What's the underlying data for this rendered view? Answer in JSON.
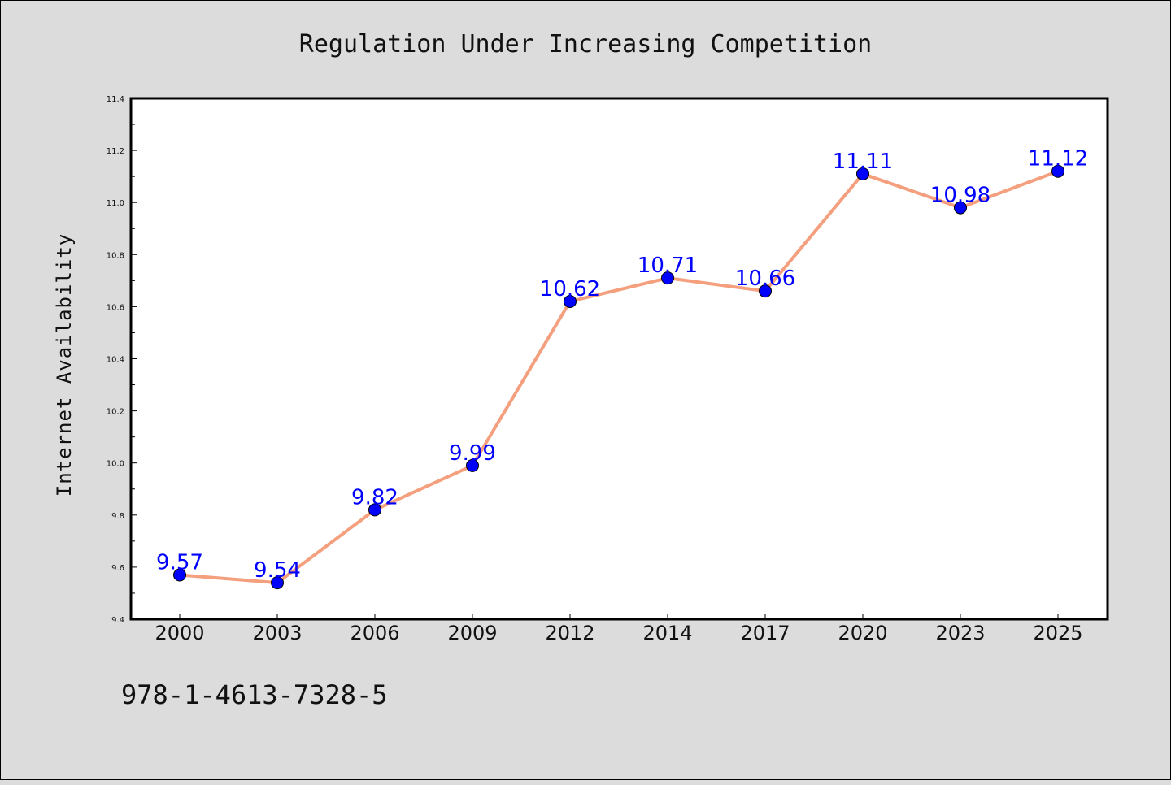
{
  "chart_data": {
    "type": "line",
    "title": "Regulation Under Increasing Competition",
    "xlabel": "",
    "ylabel": "Internet Availability",
    "categories": [
      "2000",
      "2003",
      "2006",
      "2009",
      "2012",
      "2014",
      "2017",
      "2020",
      "2023",
      "2025"
    ],
    "series": [
      {
        "values": [
          9.57,
          9.54,
          9.82,
          9.99,
          10.62,
          10.71,
          10.66,
          11.11,
          10.98,
          11.12
        ],
        "data_labels": [
          "9.57",
          "9.54",
          "9.82",
          "9.99",
          "10.62",
          "10.71",
          "10.66",
          "11.11",
          "10.98",
          "11.12"
        ],
        "line_color": "#f4a07f",
        "marker_color": "#0000ff",
        "label_color": "#0000ff"
      }
    ],
    "ylim": [
      9.4,
      11.4
    ],
    "yticks": [
      "9.4",
      "9.6",
      "9.8",
      "10.0",
      "10.2",
      "10.4",
      "10.6",
      "10.8",
      "11.0",
      "11.2",
      "11.4"
    ],
    "grid": false,
    "legend": "none"
  },
  "footer": {
    "code": "978-1-4613-7328-5"
  },
  "colors": {
    "background": "#dcdcdc",
    "plot_background": "#ffffff"
  }
}
